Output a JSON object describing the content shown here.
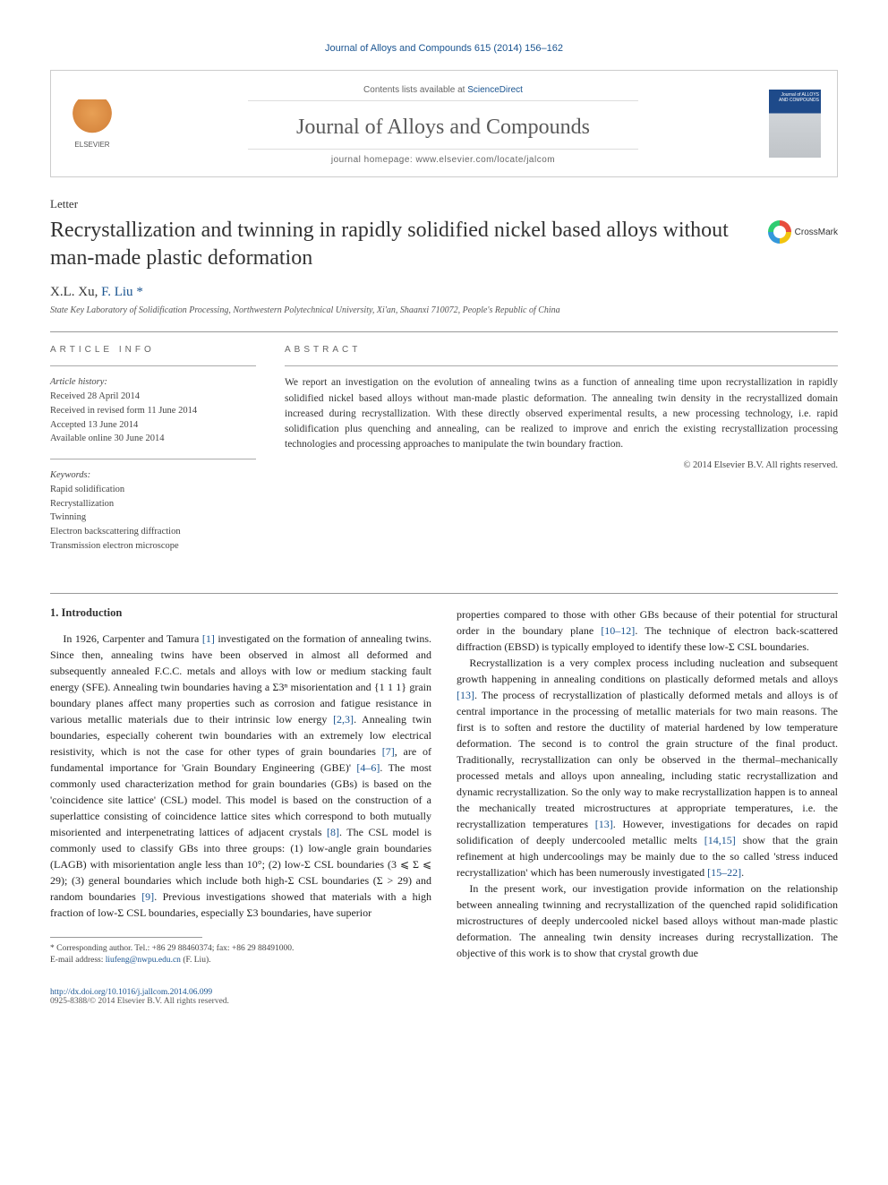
{
  "header": {
    "citation": "Journal of Alloys and Compounds 615 (2014) 156–162",
    "contents_line": "Contents lists available at ",
    "sciencedirect": "ScienceDirect",
    "journal_name": "Journal of Alloys and Compounds",
    "homepage_label": "journal homepage: ",
    "homepage_url": "www.elsevier.com/locate/jalcom",
    "elsevier": "ELSEVIER",
    "cover_text": "Journal of ALLOYS AND COMPOUNDS"
  },
  "article": {
    "type": "Letter",
    "title": "Recrystallization and twinning in rapidly solidified nickel based alloys without man-made plastic deformation",
    "crossmark": "CrossMark",
    "authors_prefix": "X.L. Xu, ",
    "author_corr": "F. Liu",
    "author_marker": "*",
    "affiliation": "State Key Laboratory of Solidification Processing, Northwestern Polytechnical University, Xi'an, Shaanxi 710072, People's Republic of China"
  },
  "meta": {
    "info_label": "ARTICLE INFO",
    "history_label": "Article history:",
    "received": "Received 28 April 2014",
    "revised": "Received in revised form 11 June 2014",
    "accepted": "Accepted 13 June 2014",
    "online": "Available online 30 June 2014",
    "keywords_label": "Keywords:",
    "kw1": "Rapid solidification",
    "kw2": "Recrystallization",
    "kw3": "Twinning",
    "kw4": "Electron backscattering diffraction",
    "kw5": "Transmission electron microscope"
  },
  "abstract": {
    "label": "ABSTRACT",
    "text": "We report an investigation on the evolution of annealing twins as a function of annealing time upon recrystallization in rapidly solidified nickel based alloys without man-made plastic deformation. The annealing twin density in the recrystallized domain increased during recrystallization. With these directly observed experimental results, a new processing technology, i.e. rapid solidification plus quenching and annealing, can be realized to improve and enrich the existing recrystallization processing technologies and processing approaches to manipulate the twin boundary fraction.",
    "copyright": "© 2014 Elsevier B.V. All rights reserved."
  },
  "body": {
    "heading1": "1. Introduction",
    "col1_p1a": "In 1926, Carpenter and Tamura ",
    "ref1": "[1]",
    "col1_p1b": " investigated on the formation of annealing twins. Since then, annealing twins have been observed in almost all deformed and subsequently annealed F.C.C. metals and alloys with low or medium stacking fault energy (SFE). Annealing twin boundaries having a Σ3ⁿ misorientation and {1 1 1} grain boundary planes affect many properties such as corrosion and fatigue resistance in various metallic materials due to their intrinsic low energy ",
    "ref23": "[2,3]",
    "col1_p1c": ". Annealing twin boundaries, especially coherent twin boundaries with an extremely low electrical resistivity, which is not the case for other types of grain boundaries ",
    "ref7": "[7]",
    "col1_p1d": ", are of fundamental importance for 'Grain Boundary Engineering (GBE)' ",
    "ref46": "[4–6]",
    "col1_p1e": ". The most commonly used characterization method for grain boundaries (GBs) is based on the 'coincidence site lattice' (CSL) model. This model is based on the construction of a superlattice consisting of coincidence lattice sites which correspond to both mutually misoriented and interpenetrating lattices of adjacent crystals ",
    "ref8": "[8]",
    "col1_p1f": ". The CSL model is commonly used to classify GBs into three groups: (1) low-angle grain boundaries (LAGB) with misorientation angle less than 10°; (2) low-Σ CSL boundaries (3 ⩽ Σ ⩽ 29); (3) general boundaries which include both high-Σ CSL boundaries (Σ > 29) and random boundaries ",
    "ref9": "[9]",
    "col1_p1g": ". Previous investigations showed that materials with a high fraction of low-Σ CSL boundaries, especially Σ3 boundaries, have superior",
    "col2_p1a": "properties compared to those with other GBs because of their potential for structural order in the boundary plane ",
    "ref1012": "[10–12]",
    "col2_p1b": ". The technique of electron back-scattered diffraction (EBSD) is typically employed to identify these low-Σ CSL boundaries.",
    "col2_p2a": "Recrystallization is a very complex process including nucleation and subsequent growth happening in annealing conditions on plastically deformed metals and alloys ",
    "ref13a": "[13]",
    "col2_p2b": ". The process of recrystallization of plastically deformed metals and alloys is of central importance in the processing of metallic materials for two main reasons. The first is to soften and restore the ductility of material hardened by low temperature deformation. The second is to control the grain structure of the final product. Traditionally, recrystallization can only be observed in the thermal–mechanically processed metals and alloys upon annealing, including static recrystallization and dynamic recrystallization. So the only way to make recrystallization happen is to anneal the mechanically treated microstructures at appropriate temperatures, i.e. the recrystallization temperatures ",
    "ref13b": "[13]",
    "col2_p2c": ". However, investigations for decades on rapid solidification of deeply undercooled metallic melts ",
    "ref1415": "[14,15]",
    "col2_p2d": " show that the grain refinement at high undercoolings may be mainly due to the so called 'stress induced recrystallization' which has been numerously investigated ",
    "ref1522": "[15–22]",
    "col2_p2e": ".",
    "col2_p3": "In the present work, our investigation provide information on the relationship between annealing twinning and recrystallization of the quenched rapid solidification microstructures of deeply undercooled nickel based alloys without man-made plastic deformation. The annealing twin density increases during recrystallization. The objective of this work is to show that crystal growth due"
  },
  "footnote": {
    "corr_label": "* Corresponding author. Tel.: +86 29 88460374; fax: +86 29 88491000.",
    "email_label": "E-mail address: ",
    "email": "liufeng@nwpu.edu.cn",
    "email_suffix": " (F. Liu)."
  },
  "bottom": {
    "doi": "http://dx.doi.org/10.1016/j.jallcom.2014.06.099",
    "issn_line": "0925-8388/© 2014 Elsevier B.V. All rights reserved."
  }
}
